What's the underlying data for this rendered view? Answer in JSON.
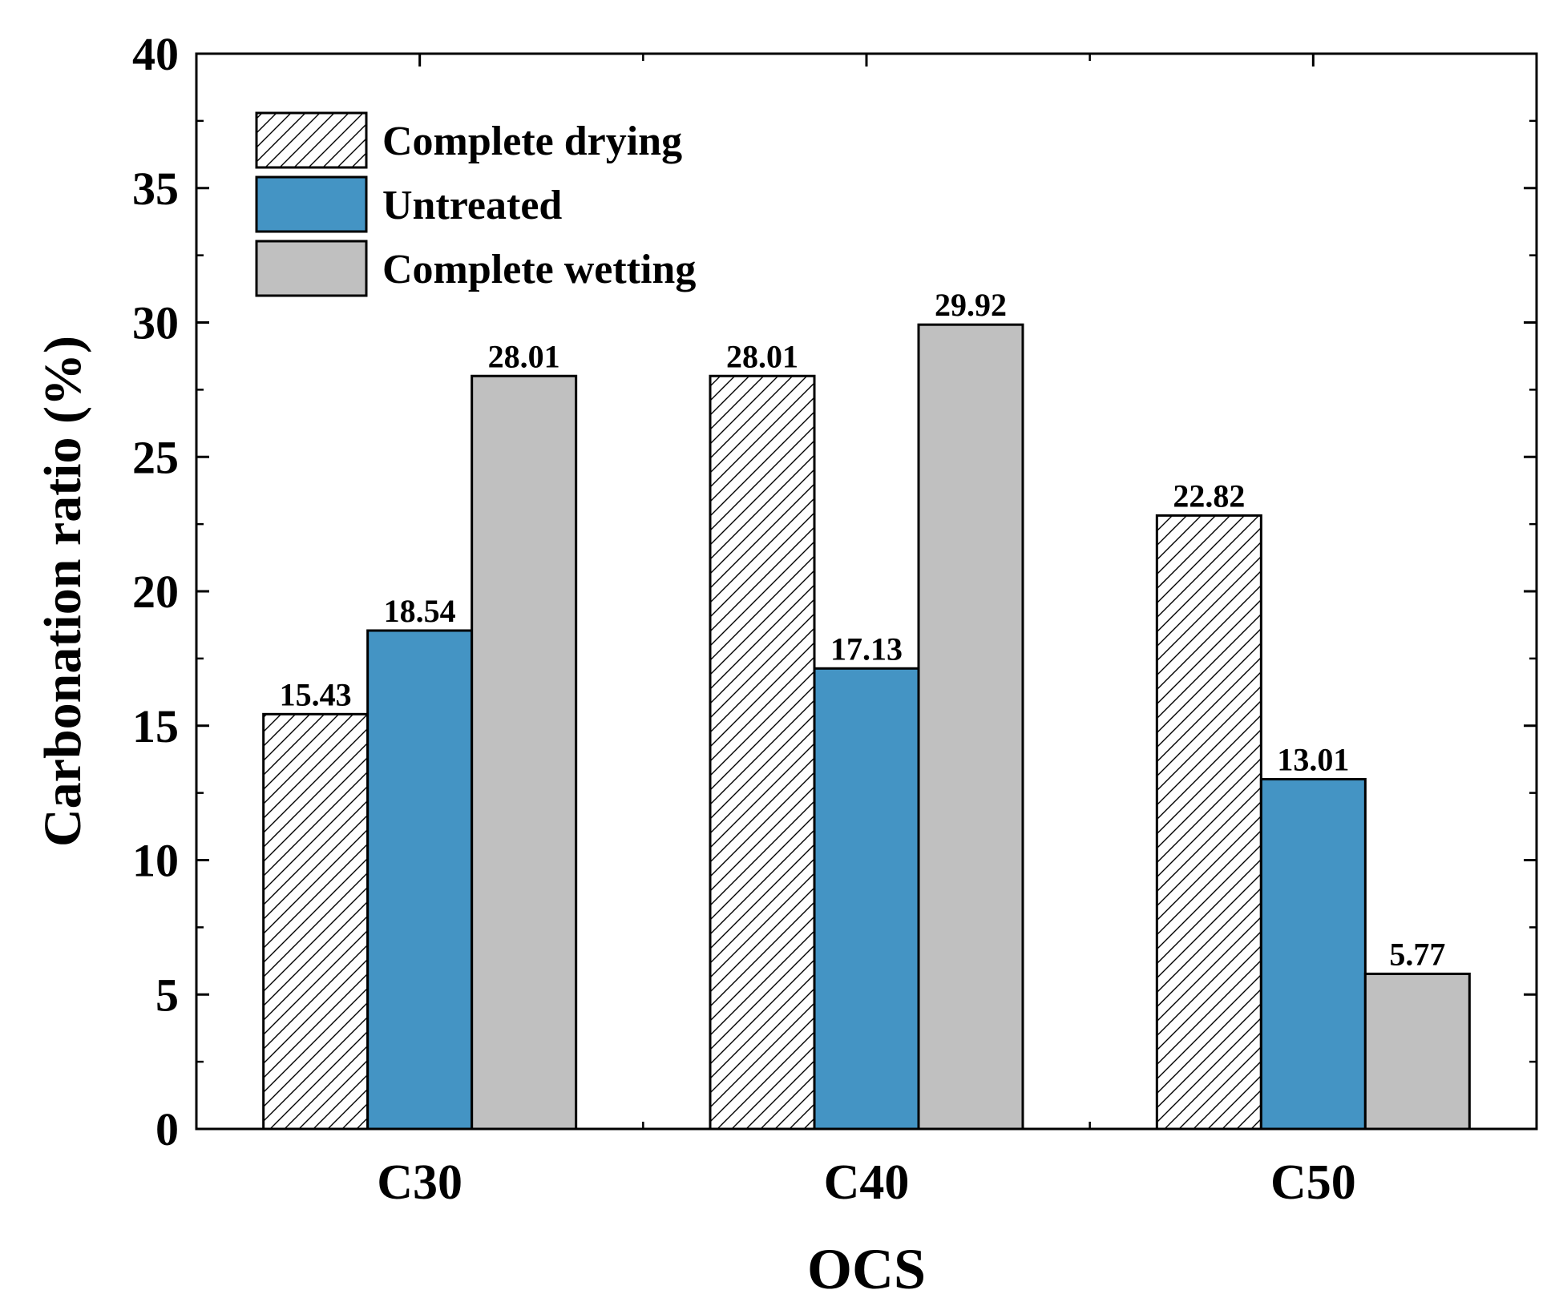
{
  "chart_data": {
    "type": "bar",
    "title": "",
    "xlabel": "OCS",
    "ylabel": "Carbonation ratio (%)",
    "categories": [
      "C30",
      "C40",
      "C50"
    ],
    "ylim": [
      0,
      40
    ],
    "yticks": [
      0,
      5,
      10,
      15,
      20,
      25,
      30,
      35,
      40
    ],
    "ytick_labels": [
      "0",
      "5",
      "10",
      "15",
      "20",
      "25",
      "30",
      "35",
      "40"
    ],
    "grid": false,
    "legend_position": "top-left",
    "series": [
      {
        "name": "Complete drying",
        "fill": "hatched",
        "color": "#ffffff",
        "values": [
          15.43,
          28.01,
          22.82
        ],
        "labels": [
          "15.43",
          "28.01",
          "22.82"
        ]
      },
      {
        "name": "Untreated",
        "fill": "solid",
        "color": "#4494c4",
        "values": [
          18.54,
          17.13,
          13.01
        ],
        "labels": [
          "18.54",
          "17.13",
          "13.01"
        ]
      },
      {
        "name": "Complete wetting",
        "fill": "solid",
        "color": "#c0c0c0",
        "values": [
          28.01,
          29.92,
          5.77
        ],
        "labels": [
          "28.01",
          "29.92",
          "5.77"
        ]
      }
    ]
  }
}
